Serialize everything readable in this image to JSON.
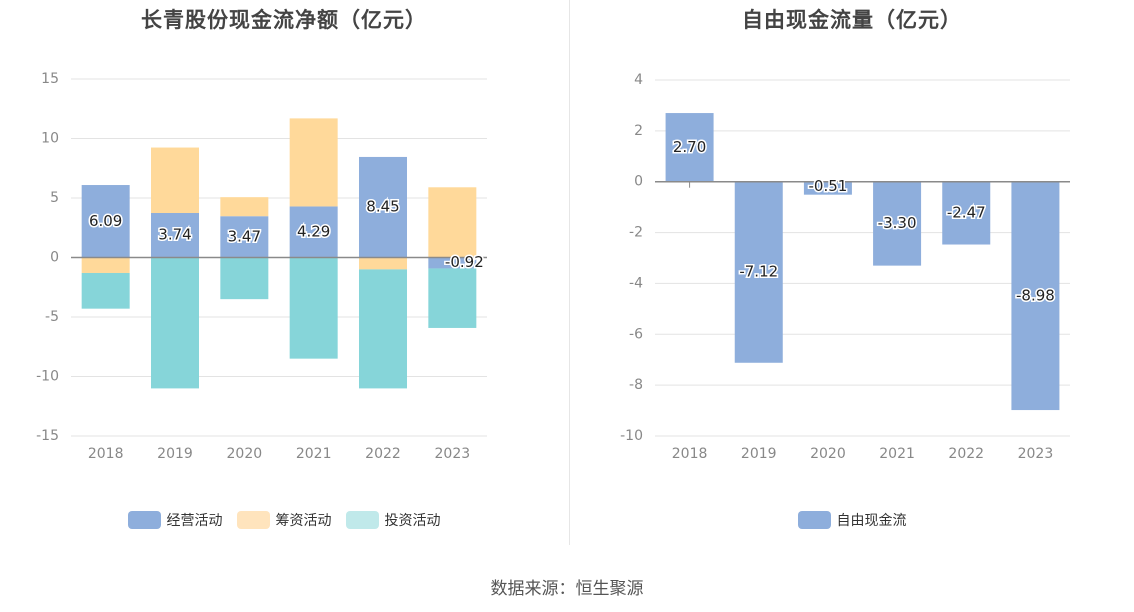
{
  "chart_data": [
    {
      "type": "bar",
      "stacked": true,
      "title": "长青股份现金流净额（亿元）",
      "categories": [
        "2018",
        "2019",
        "2020",
        "2021",
        "2022",
        "2023"
      ],
      "ylim": [
        -15,
        15
      ],
      "yticks": [
        15,
        10,
        5,
        0,
        -5,
        -10,
        -15
      ],
      "grid": true,
      "legend_position": "bottom",
      "net_labels": [
        "6.09",
        "3.74",
        "3.47",
        "4.29",
        "8.45",
        "-0.92"
      ],
      "series": [
        {
          "name": "经营活动",
          "color": "#8eaedc",
          "values": [
            6.09,
            3.74,
            3.47,
            4.29,
            8.45,
            -0.92
          ]
        },
        {
          "name": "筹资活动",
          "color": "#ffd99a",
          "values": [
            -1.3,
            5.5,
            1.6,
            7.4,
            -1.0,
            5.9
          ]
        },
        {
          "name": "投资活动",
          "color": "#86d5d9",
          "values": [
            -3.0,
            -11.0,
            -3.5,
            -8.5,
            -10.0,
            -5.0
          ]
        }
      ]
    },
    {
      "type": "bar",
      "title": "自由现金流量（亿元）",
      "categories": [
        "2018",
        "2019",
        "2020",
        "2021",
        "2022",
        "2023"
      ],
      "ylim": [
        -10,
        4
      ],
      "yticks": [
        4,
        2,
        0,
        -2,
        -4,
        -6,
        -8,
        -10
      ],
      "grid": true,
      "legend_position": "bottom",
      "series": [
        {
          "name": "自由现金流",
          "color": "#8eaedc",
          "values": [
            2.7,
            -7.12,
            -0.51,
            -3.3,
            -2.47,
            -8.98
          ],
          "labels": [
            "2.70",
            "-7.12",
            "-0.51",
            "-3.30",
            "-2.47",
            "-8.98"
          ]
        }
      ]
    }
  ],
  "legend_colors": {
    "经营活动": "#8eaedc",
    "筹资活动": "#ffe4bd",
    "投资活动": "#c0e9ea",
    "自由现金流": "#8eaedc"
  },
  "source": "数据来源：恒生聚源"
}
